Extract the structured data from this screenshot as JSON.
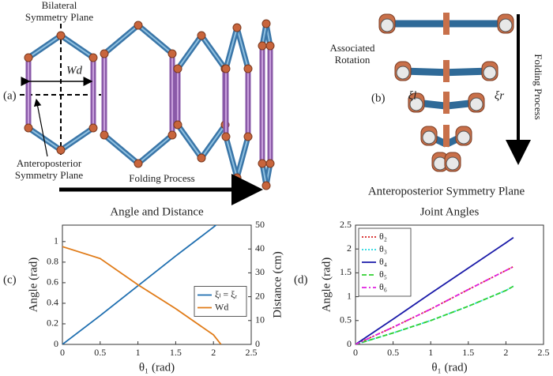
{
  "figure": {
    "a": {
      "panel": "(a)",
      "bilateral": [
        "Bilateral",
        "Symmetry Plane"
      ],
      "anteroposterior": [
        "Anteroposterior",
        "Symmetry Plane"
      ],
      "width": "Wd",
      "folding": "Folding Process"
    },
    "b": {
      "panel": "(b)",
      "rotation": [
        "Associated",
        "Rotation"
      ],
      "xi_l": "ξl",
      "xi_r": "ξr",
      "folding": "Folding Process",
      "plane": "Anteroposterior Symmetry Plane"
    },
    "c": {
      "panel": "(c)"
    },
    "d": {
      "panel": "(d)"
    }
  },
  "chart_data": [
    {
      "type": "line",
      "title": "Angle and Distance",
      "xlabel": "θ₁ (rad)",
      "ylabel": "Angle (rad)",
      "y2label": "Distance (cm)",
      "x": [
        0,
        0.5,
        1,
        1.5,
        2,
        2.1
      ],
      "series": [
        {
          "name": "ξₗ = ξᵣ",
          "color": "#1f6fb0",
          "style": "solid",
          "values": [
            0,
            0.28,
            0.57,
            0.86,
            1.14,
            1.2
          ]
        },
        {
          "name": "Wd",
          "color": "#e07b18",
          "style": "solid",
          "axis": "y2",
          "values": [
            41,
            36,
            25,
            15,
            4,
            0
          ]
        }
      ],
      "xlim": [
        0,
        2.5
      ],
      "xticks": [
        0,
        0.5,
        1,
        1.5,
        2,
        2.5
      ],
      "ylim": [
        0,
        1.16
      ],
      "yticks": [
        0,
        0.2,
        0.4,
        0.6,
        0.8,
        1
      ],
      "y2lim": [
        0,
        50
      ],
      "y2ticks": [
        0,
        10,
        20,
        30,
        40,
        50
      ],
      "legend": "right"
    },
    {
      "type": "line",
      "title": "Joint Angles",
      "xlabel": "θ₁ (rad)",
      "ylabel": "Angle (rad)",
      "x": [
        0,
        0.5,
        1,
        1.5,
        2,
        2.1
      ],
      "series": [
        {
          "name": "θ₂",
          "color": "#d62020",
          "style": "dotted",
          "values": [
            0,
            0.36,
            0.74,
            1.15,
            1.55,
            1.63
          ]
        },
        {
          "name": "θ₃",
          "color": "#22d8e0",
          "style": "dotted",
          "values": [
            0,
            0.24,
            0.5,
            0.8,
            1.13,
            1.22
          ]
        },
        {
          "name": "θ₄",
          "color": "#1a1aa8",
          "style": "solid",
          "values": [
            0,
            0.53,
            1.07,
            1.6,
            2.13,
            2.24
          ]
        },
        {
          "name": "θ₅",
          "color": "#30d030",
          "style": "dashed",
          "values": [
            0,
            0.24,
            0.5,
            0.8,
            1.13,
            1.22
          ]
        },
        {
          "name": "θ₆",
          "color": "#e020e0",
          "style": "dashdot",
          "values": [
            0,
            0.36,
            0.74,
            1.15,
            1.55,
            1.63
          ]
        }
      ],
      "xlim": [
        0,
        2.5
      ],
      "xticks": [
        0,
        0.5,
        1,
        1.5,
        2,
        2.5
      ],
      "ylim": [
        0,
        2.5
      ],
      "yticks": [
        0,
        0.5,
        1,
        1.5,
        2,
        2.5
      ],
      "legend": "upper left"
    }
  ]
}
